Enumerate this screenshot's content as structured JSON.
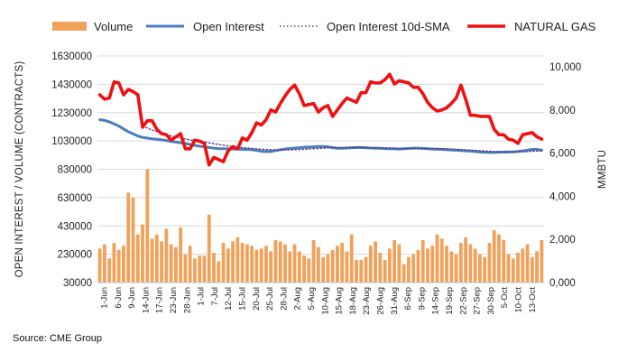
{
  "chart_data": {
    "type": "bar+line",
    "source": "Source: CME Group",
    "legend": {
      "position": "top",
      "items": [
        {
          "name": "Volume",
          "marker": "bar",
          "color": "#F0A15A"
        },
        {
          "name": "Open Interest",
          "marker": "line",
          "color": "#4A7EBB"
        },
        {
          "name": "Open Interest 10d-SMA",
          "marker": "dotted",
          "color": "#5B3A8C"
        },
        {
          "name": "NATURAL GAS",
          "marker": "thick-line",
          "color": "#EE1111"
        }
      ]
    },
    "y_left": {
      "label": "OPEN INTEREST / VOLUME (CONTRACTS)",
      "ylim": [
        30000,
        1630000
      ],
      "ticks": [
        30000,
        230000,
        430000,
        630000,
        830000,
        1030000,
        1230000,
        1430000,
        1630000
      ],
      "tick_labels": [
        "30000",
        "230000",
        "430000",
        "630000",
        "830000",
        "1030000",
        "1230000",
        "1430000",
        "1630000"
      ]
    },
    "y_right": {
      "label": "MMBTU",
      "ylim": [
        0,
        10500
      ],
      "ticks": [
        0,
        2000,
        4000,
        6000,
        8000,
        10000
      ],
      "tick_labels": [
        "0,000",
        "2,000",
        "4,000",
        "6,000",
        "8,000",
        "10,000"
      ]
    },
    "x_tick_labels": [
      "1-Jun",
      "6-Jun",
      "9-Jun",
      "14-Jun",
      "17-Jun",
      "23-Jun",
      "28-Jun",
      "1-Jul",
      "7-Jul",
      "12-Jul",
      "15-Jul",
      "20-Jul",
      "25-Jul",
      "28-Jul",
      "2-Aug",
      "5-Aug",
      "10-Aug",
      "15-Aug",
      "18-Aug",
      "23-Aug",
      "26-Aug",
      "31-Aug",
      "6-Sep",
      "9-Sep",
      "14-Sep",
      "19-Sep",
      "22-Sep",
      "27-Sep",
      "30-Sep",
      "5-Oct",
      "10-Oct",
      "13-Oct"
    ],
    "n_days": 94,
    "series": [
      {
        "name": "Volume",
        "type": "bar",
        "axis": "left",
        "values": [
          270000,
          300000,
          200000,
          310000,
          260000,
          290000,
          665000,
          630000,
          370000,
          440000,
          830000,
          340000,
          370000,
          320000,
          410000,
          300000,
          280000,
          420000,
          230000,
          290000,
          200000,
          220000,
          220000,
          510000,
          240000,
          180000,
          310000,
          270000,
          320000,
          350000,
          310000,
          300000,
          290000,
          260000,
          270000,
          290000,
          250000,
          330000,
          320000,
          300000,
          250000,
          300000,
          250000,
          220000,
          200000,
          330000,
          280000,
          210000,
          230000,
          260000,
          290000,
          310000,
          250000,
          370000,
          190000,
          190000,
          210000,
          290000,
          320000,
          240000,
          190000,
          270000,
          330000,
          300000,
          160000,
          210000,
          230000,
          260000,
          330000,
          270000,
          290000,
          370000,
          340000,
          290000,
          250000,
          230000,
          310000,
          350000,
          300000,
          270000,
          230000,
          210000,
          310000,
          400000,
          370000,
          330000,
          230000,
          200000,
          240000,
          270000,
          300000,
          210000,
          250000,
          330000
        ]
      },
      {
        "name": "Open Interest",
        "type": "line",
        "axis": "left",
        "values": [
          1180000,
          1175000,
          1165000,
          1150000,
          1135000,
          1115000,
          1095000,
          1080000,
          1065000,
          1055000,
          1050000,
          1045000,
          1042000,
          1038000,
          1033000,
          1027000,
          1022000,
          1017000,
          1012000,
          1005000,
          998000,
          993000,
          988000,
          984000,
          979000,
          976000,
          975000,
          974000,
          973000,
          972000,
          971000,
          970000,
          968000,
          963000,
          957000,
          955000,
          955000,
          962000,
          968000,
          973000,
          977000,
          980000,
          982000,
          985000,
          987000,
          989000,
          991000,
          991000,
          989000,
          983000,
          978000,
          978000,
          980000,
          982000,
          984000,
          984000,
          982000,
          980000,
          979000,
          978000,
          976000,
          975000,
          974000,
          973000,
          975000,
          977000,
          979000,
          979000,
          977000,
          975000,
          973000,
          972000,
          970000,
          968000,
          966000,
          964000,
          962000,
          960000,
          958000,
          955000,
          952000,
          950000,
          949000,
          949000,
          950000,
          951000,
          952000,
          953000,
          956000,
          960000,
          965000,
          970000,
          970000,
          965000
        ]
      },
      {
        "name": "Open Interest 10d-SMA",
        "type": "line",
        "axis": "left",
        "values": [
          null,
          null,
          null,
          null,
          null,
          null,
          null,
          null,
          null,
          1135000,
          1121000,
          1108000,
          1096000,
          1085000,
          1075000,
          1065000,
          1057000,
          1050000,
          1044000,
          1038000,
          1033000,
          1027000,
          1022000,
          1016000,
          1011000,
          1005000,
          1000000,
          995000,
          990000,
          986000,
          983000,
          980000,
          977000,
          974000,
          972000,
          970000,
          968000,
          967000,
          966000,
          966000,
          967000,
          968000,
          969000,
          971000,
          973000,
          975000,
          977000,
          979000,
          981000,
          982000,
          983000,
          983000,
          983000,
          983000,
          983000,
          983000,
          982000,
          981000,
          981000,
          980000,
          980000,
          980000,
          979000,
          978000,
          977000,
          977000,
          977000,
          977000,
          977000,
          977000,
          977000,
          976000,
          975000,
          974000,
          973000,
          971000,
          969000,
          967000,
          965000,
          963000,
          961000,
          959000,
          957000,
          955000,
          954000,
          953000,
          952000,
          952000,
          952000,
          953000,
          955000,
          957000,
          959000,
          960000
        ]
      },
      {
        "name": "NATURAL GAS",
        "type": "line",
        "axis": "right",
        "values": [
          8700,
          8500,
          8550,
          9300,
          9250,
          8700,
          8950,
          8850,
          8700,
          7200,
          7500,
          7500,
          7100,
          6900,
          6850,
          6600,
          6750,
          6900,
          6200,
          6200,
          6600,
          6550,
          6450,
          5450,
          5800,
          5700,
          5600,
          6100,
          6300,
          6200,
          6700,
          6600,
          6950,
          7400,
          7300,
          7550,
          8000,
          7900,
          8300,
          8650,
          8950,
          9150,
          8750,
          8200,
          8250,
          8300,
          7900,
          8100,
          8200,
          7700,
          8000,
          8300,
          8550,
          8450,
          8350,
          8800,
          8800,
          9300,
          9250,
          9250,
          9400,
          9650,
          9200,
          9350,
          9300,
          9250,
          9050,
          9050,
          8750,
          8350,
          8100,
          7950,
          8000,
          8100,
          8300,
          8550,
          9150,
          8500,
          7750,
          7750,
          7700,
          7700,
          7700,
          7100,
          6850,
          6850,
          6650,
          6600,
          6450,
          6850,
          6900,
          6950,
          6750,
          6650
        ]
      }
    ]
  }
}
